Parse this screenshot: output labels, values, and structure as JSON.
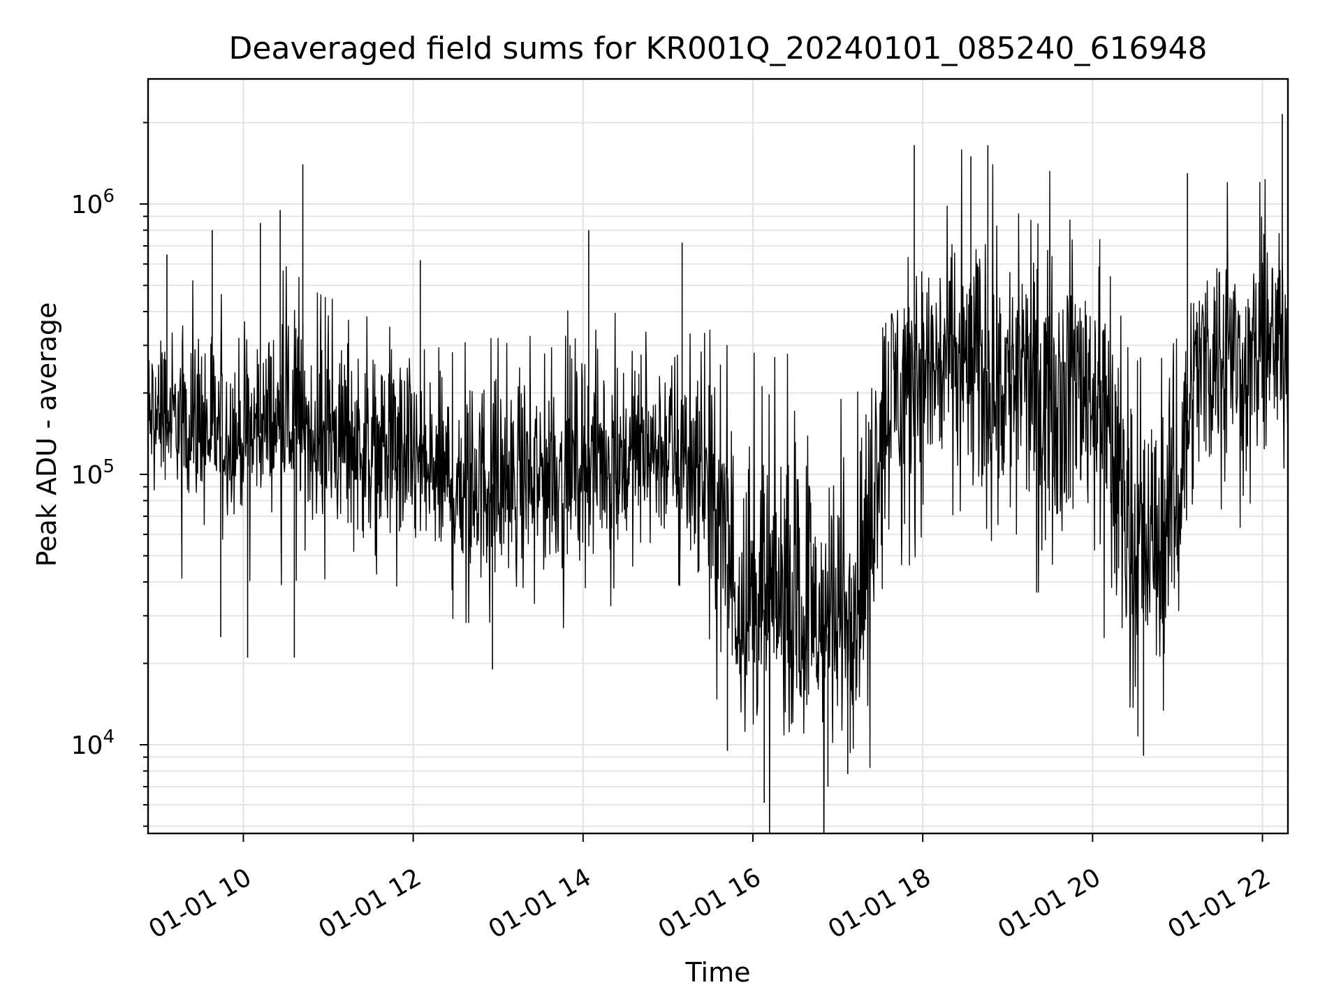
{
  "chart_data": {
    "type": "line",
    "title": "Deaveraged field sums for KR001Q_20240101_085240_616948",
    "xlabel": "Time",
    "ylabel": "Peak ADU - average",
    "yscale": "log",
    "x_range": [
      "2024-01-01 08:52:40",
      "2024-01-01 22:18:00"
    ],
    "ylim": [
      4700,
      2900000
    ],
    "x_ticks": [
      "01-01 10",
      "01-01 12",
      "01-01 14",
      "01-01 16",
      "01-01 18",
      "01-01 20",
      "01-01 22"
    ],
    "y_ticks": [
      {
        "base": "10",
        "exp": "4",
        "value": 10000
      },
      {
        "base": "10",
        "exp": "5",
        "value": 100000
      },
      {
        "base": "10",
        "exp": "6",
        "value": 1000000
      }
    ],
    "grid": true,
    "line_color": "#000000",
    "series": [
      {
        "x": [
          "2024-01-01 08:52:40",
          "2024-01-01 09:00",
          "2024-01-01 09:10",
          "2024-01-01 09:20",
          "2024-01-01 09:30",
          "2024-01-01 09:40",
          "2024-01-01 09:50",
          "2024-01-01 10:00",
          "2024-01-01 10:10",
          "2024-01-01 10:20",
          "2024-01-01 10:30",
          "2024-01-01 10:40",
          "2024-01-01 10:50",
          "2024-01-01 11:00",
          "2024-01-01 11:10",
          "2024-01-01 11:20",
          "2024-01-01 11:30",
          "2024-01-01 11:40",
          "2024-01-01 11:50",
          "2024-01-01 12:00",
          "2024-01-01 12:10",
          "2024-01-01 12:20",
          "2024-01-01 12:30",
          "2024-01-01 12:40",
          "2024-01-01 12:50",
          "2024-01-01 13:00",
          "2024-01-01 13:10",
          "2024-01-01 13:20",
          "2024-01-01 13:30",
          "2024-01-01 13:40",
          "2024-01-01 13:50",
          "2024-01-01 14:00",
          "2024-01-01 14:10",
          "2024-01-01 14:20",
          "2024-01-01 14:30",
          "2024-01-01 14:40",
          "2024-01-01 14:50",
          "2024-01-01 15:00",
          "2024-01-01 15:10",
          "2024-01-01 15:20",
          "2024-01-01 15:30",
          "2024-01-01 15:40",
          "2024-01-01 15:50",
          "2024-01-01 16:00",
          "2024-01-01 16:10",
          "2024-01-01 16:20",
          "2024-01-01 16:30",
          "2024-01-01 16:40",
          "2024-01-01 16:50",
          "2024-01-01 17:00",
          "2024-01-01 17:10",
          "2024-01-01 17:20",
          "2024-01-01 17:30",
          "2024-01-01 17:40",
          "2024-01-01 17:50",
          "2024-01-01 18:00",
          "2024-01-01 18:10",
          "2024-01-01 18:20",
          "2024-01-01 18:30",
          "2024-01-01 18:40",
          "2024-01-01 18:50",
          "2024-01-01 19:00",
          "2024-01-01 19:10",
          "2024-01-01 19:20",
          "2024-01-01 19:30",
          "2024-01-01 19:40",
          "2024-01-01 19:50",
          "2024-01-01 20:00",
          "2024-01-01 20:10",
          "2024-01-01 20:20",
          "2024-01-01 20:30",
          "2024-01-01 20:40",
          "2024-01-01 20:50",
          "2024-01-01 21:00",
          "2024-01-01 21:10",
          "2024-01-01 21:20",
          "2024-01-01 21:30",
          "2024-01-01 21:40",
          "2024-01-01 21:50",
          "2024-01-01 22:00",
          "2024-01-01 22:10",
          "2024-01-01 22:18"
        ],
        "center": [
          150000,
          160000,
          150000,
          140000,
          135000,
          140000,
          135000,
          130000,
          140000,
          150000,
          145000,
          150000,
          140000,
          135000,
          130000,
          130000,
          125000,
          120000,
          120000,
          110000,
          100000,
          95000,
          90000,
          95000,
          95000,
          90000,
          85000,
          90000,
          95000,
          100000,
          105000,
          110000,
          110000,
          115000,
          115000,
          120000,
          120000,
          120000,
          115000,
          110000,
          80000,
          50000,
          35000,
          30000,
          32000,
          30000,
          28000,
          26000,
          25000,
          27000,
          30000,
          40000,
          150000,
          220000,
          240000,
          250000,
          260000,
          270000,
          260000,
          250000,
          240000,
          230000,
          240000,
          230000,
          220000,
          230000,
          240000,
          220000,
          160000,
          80000,
          55000,
          50000,
          60000,
          80000,
          230000,
          280000,
          300000,
          290000,
          260000,
          280000,
          320000,
          340000
        ],
        "low": [
          90000,
          90000,
          85000,
          80000,
          70000,
          60000,
          60000,
          65000,
          70000,
          70000,
          60000,
          55000,
          55000,
          50000,
          50000,
          45000,
          45000,
          45000,
          40000,
          40000,
          35000,
          35000,
          30000,
          30000,
          30000,
          30000,
          30000,
          35000,
          35000,
          35000,
          40000,
          40000,
          40000,
          40000,
          40000,
          45000,
          45000,
          45000,
          40000,
          40000,
          20000,
          12000,
          9500,
          9000,
          10000,
          9500,
          8500,
          8200,
          8000,
          9000,
          10000,
          13000,
          40000,
          50000,
          50000,
          50000,
          50000,
          55000,
          45000,
          45000,
          45000,
          40000,
          45000,
          40000,
          40000,
          40000,
          45000,
          40000,
          25000,
          18000,
          12000,
          12000,
          15000,
          20000,
          60000,
          70000,
          80000,
          75000,
          60000,
          70000,
          80000,
          90000
        ],
        "high": [
          400000,
          450000,
          450000,
          480000,
          500000,
          450000,
          420000,
          400000,
          450000,
          450000,
          550000,
          500000,
          450000,
          420000,
          420000,
          400000,
          350000,
          350000,
          380000,
          350000,
          300000,
          350000,
          300000,
          280000,
          300000,
          300000,
          280000,
          300000,
          320000,
          350000,
          380000,
          400000,
          380000,
          380000,
          350000,
          380000,
          400000,
          400000,
          380000,
          350000,
          300000,
          280000,
          250000,
          250000,
          280000,
          250000,
          250000,
          250000,
          230000,
          250000,
          280000,
          300000,
          600000,
          750000,
          800000,
          850000,
          900000,
          950000,
          1000000,
          1000000,
          950000,
          900000,
          850000,
          800000,
          750000,
          800000,
          850000,
          800000,
          600000,
          300000,
          250000,
          250000,
          250000,
          300000,
          700000,
          850000,
          900000,
          850000,
          800000,
          850000,
          900000,
          1000000
        ]
      }
    ],
    "spikes": [
      {
        "x": "2024-01-01 09:06",
        "y": 650000
      },
      {
        "x": "2024-01-01 09:38",
        "y": 800000
      },
      {
        "x": "2024-01-01 10:12",
        "y": 850000
      },
      {
        "x": "2024-01-01 10:26",
        "y": 950000
      },
      {
        "x": "2024-01-01 10:42",
        "y": 1400000
      },
      {
        "x": "2024-01-01 12:05",
        "y": 620000
      },
      {
        "x": "2024-01-01 14:04",
        "y": 800000
      },
      {
        "x": "2024-01-01 15:10",
        "y": 720000
      },
      {
        "x": "2024-01-01 17:54",
        "y": 1650000
      },
      {
        "x": "2024-01-01 18:34",
        "y": 1500000
      },
      {
        "x": "2024-01-01 18:46",
        "y": 1650000
      },
      {
        "x": "2024-01-01 21:07",
        "y": 1300000
      },
      {
        "x": "2024-01-01 22:14",
        "y": 2150000
      },
      {
        "x": "2024-01-01 09:44",
        "y": 25000
      },
      {
        "x": "2024-01-01 10:03",
        "y": 21000
      },
      {
        "x": "2024-01-01 10:36",
        "y": 21000
      },
      {
        "x": "2024-01-01 12:56",
        "y": 19000
      },
      {
        "x": "2024-01-01 15:42",
        "y": 9500
      },
      {
        "x": "2024-01-01 16:08",
        "y": 6100
      },
      {
        "x": "2024-01-01 16:53",
        "y": 7000
      },
      {
        "x": "2024-01-01 17:07",
        "y": 7800
      },
      {
        "x": "2024-01-01 20:36",
        "y": 9100
      }
    ]
  }
}
